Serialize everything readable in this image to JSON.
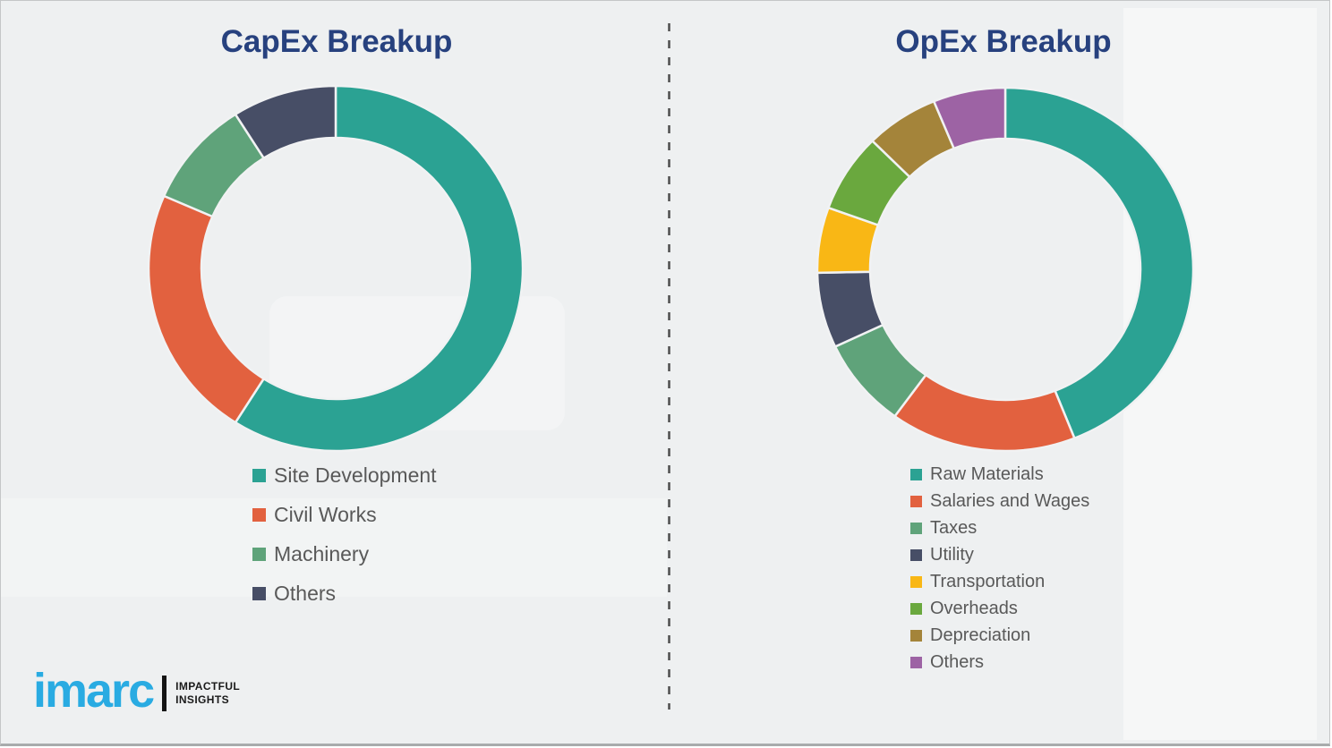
{
  "page": {
    "background_color": "#eef0f1",
    "divider_color": "#4d4d4d",
    "title_color": "#27417E",
    "legend_text_color": "#595959"
  },
  "chart_data": [
    {
      "type": "pie",
      "subtype": "donut",
      "title": "CapEx Breakup",
      "categories": [
        "Site Development",
        "Civil Works",
        "Machinery",
        "Others"
      ],
      "values": [
        59,
        22.5,
        9.5,
        9
      ],
      "colors": [
        "#2BA293",
        "#E2613F",
        "#5FA37A",
        "#474E66"
      ],
      "start_angle_deg": 0,
      "direction": "clockwise",
      "legend_position": "below-left",
      "data_labels": "none",
      "units": "percent"
    },
    {
      "type": "pie",
      "subtype": "donut",
      "title": "OpEx Breakup",
      "categories": [
        "Raw Materials",
        "Salaries and Wages",
        "Taxes",
        "Utility",
        "Transportation",
        "Overheads",
        "Depreciation",
        "Others"
      ],
      "values": [
        44,
        16,
        8,
        6.7,
        5.8,
        7,
        6.3,
        6.2
      ],
      "colors": [
        "#2BA293",
        "#E2613F",
        "#5FA37A",
        "#474E66",
        "#F9B715",
        "#6AA83E",
        "#A4843A",
        "#9D63A4"
      ],
      "start_angle_deg": 0,
      "direction": "clockwise",
      "legend_position": "below-left",
      "data_labels": "none",
      "units": "percent"
    }
  ],
  "branding": {
    "logo_text": "imarc",
    "logo_color": "#29ABE2",
    "tagline_line1": "IMPACTFUL",
    "tagline_line2": "INSIGHTS"
  }
}
